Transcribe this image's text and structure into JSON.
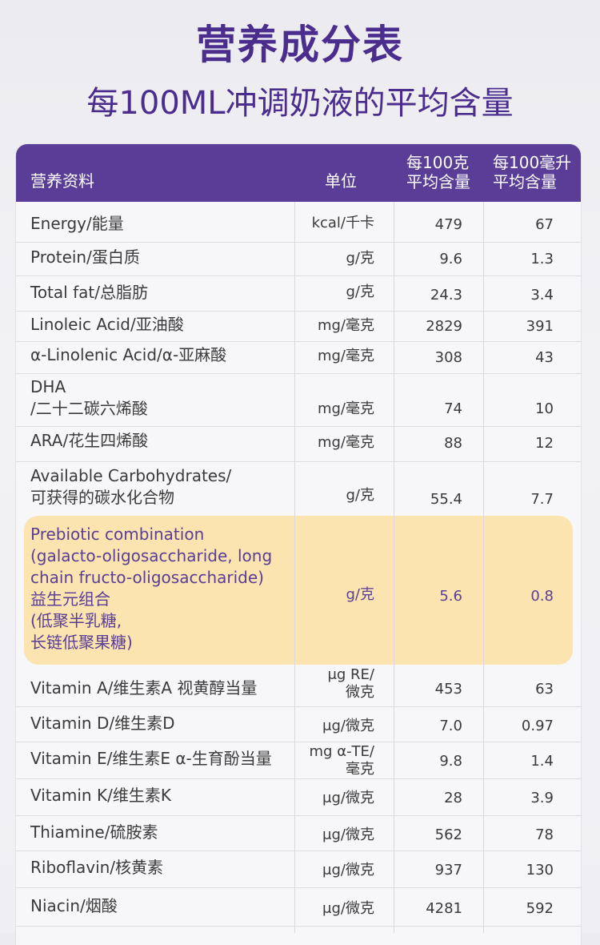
{
  "title": "营养成分表",
  "subtitle": "每100ML冲调奶液的平均含量",
  "table": {
    "headers": {
      "name": "营养资料",
      "unit": "单位",
      "per100g": "每100克\n平均含量",
      "per100ml": "每100毫升\n平均含量"
    },
    "rows": [
      {
        "name": "Energy/能量",
        "unit": "kcal/千卡",
        "per100g": "479",
        "per100ml": "67"
      },
      {
        "name": "Protein/蛋白质",
        "unit": "g/克",
        "per100g": "9.6",
        "per100ml": "1.3"
      },
      {
        "name": "Total fat/总脂肪",
        "unit": "g/克",
        "per100g": "24.3",
        "per100ml": "3.4"
      },
      {
        "name": "Linoleic Acid/亚油酸",
        "unit": "mg/毫克",
        "per100g": "2829",
        "per100ml": "391"
      },
      {
        "name": "α-Linolenic Acid/α-亚麻酸",
        "unit": "mg/毫克",
        "per100g": "308",
        "per100ml": "43"
      },
      {
        "name": "DHA\n/二十二碳六烯酸",
        "unit": "mg/毫克",
        "per100g": "74",
        "per100ml": "10"
      },
      {
        "name": "ARA/花生四烯酸",
        "unit": "mg/毫克",
        "per100g": "88",
        "per100ml": "12"
      },
      {
        "name": "Available Carbohydrates/\n可获得的碳水化合物",
        "unit": "g/克",
        "per100g": "55.4",
        "per100ml": "7.7"
      },
      {
        "name": "Prebiotic combination\n(galacto-oligosaccharide, long\nchain fructo-oligosaccharide)\n益生元组合\n(低聚半乳糖,\n长链低聚果糖)",
        "unit": "g/克",
        "per100g": "5.6",
        "per100ml": "0.8"
      },
      {
        "name": "Vitamin A/维生素A  视黄醇当量",
        "unit": "μg RE/\n微克",
        "per100g": "453",
        "per100ml": "63"
      },
      {
        "name": "Vitamin D/维生素D",
        "unit": "μg/微克",
        "per100g": "7.0",
        "per100ml": "0.97"
      },
      {
        "name": "Vitamin E/维生素E  α-生育酚当量",
        "unit": "mg α-TE/\n毫克",
        "per100g": "9.8",
        "per100ml": "1.4"
      },
      {
        "name": "Vitamin K/维生素K",
        "unit": "μg/微克",
        "per100g": "28",
        "per100ml": "3.9"
      },
      {
        "name": "Thiamine/硫胺素",
        "unit": "μg/微克",
        "per100g": "562",
        "per100ml": "78"
      },
      {
        "name": "Riboflavin/核黄素",
        "unit": "μg/微克",
        "per100g": "937",
        "per100ml": "130"
      },
      {
        "name": "Niacin/烟酸",
        "unit": "μg/微克",
        "per100g": "4281",
        "per100ml": "592"
      }
    ]
  }
}
